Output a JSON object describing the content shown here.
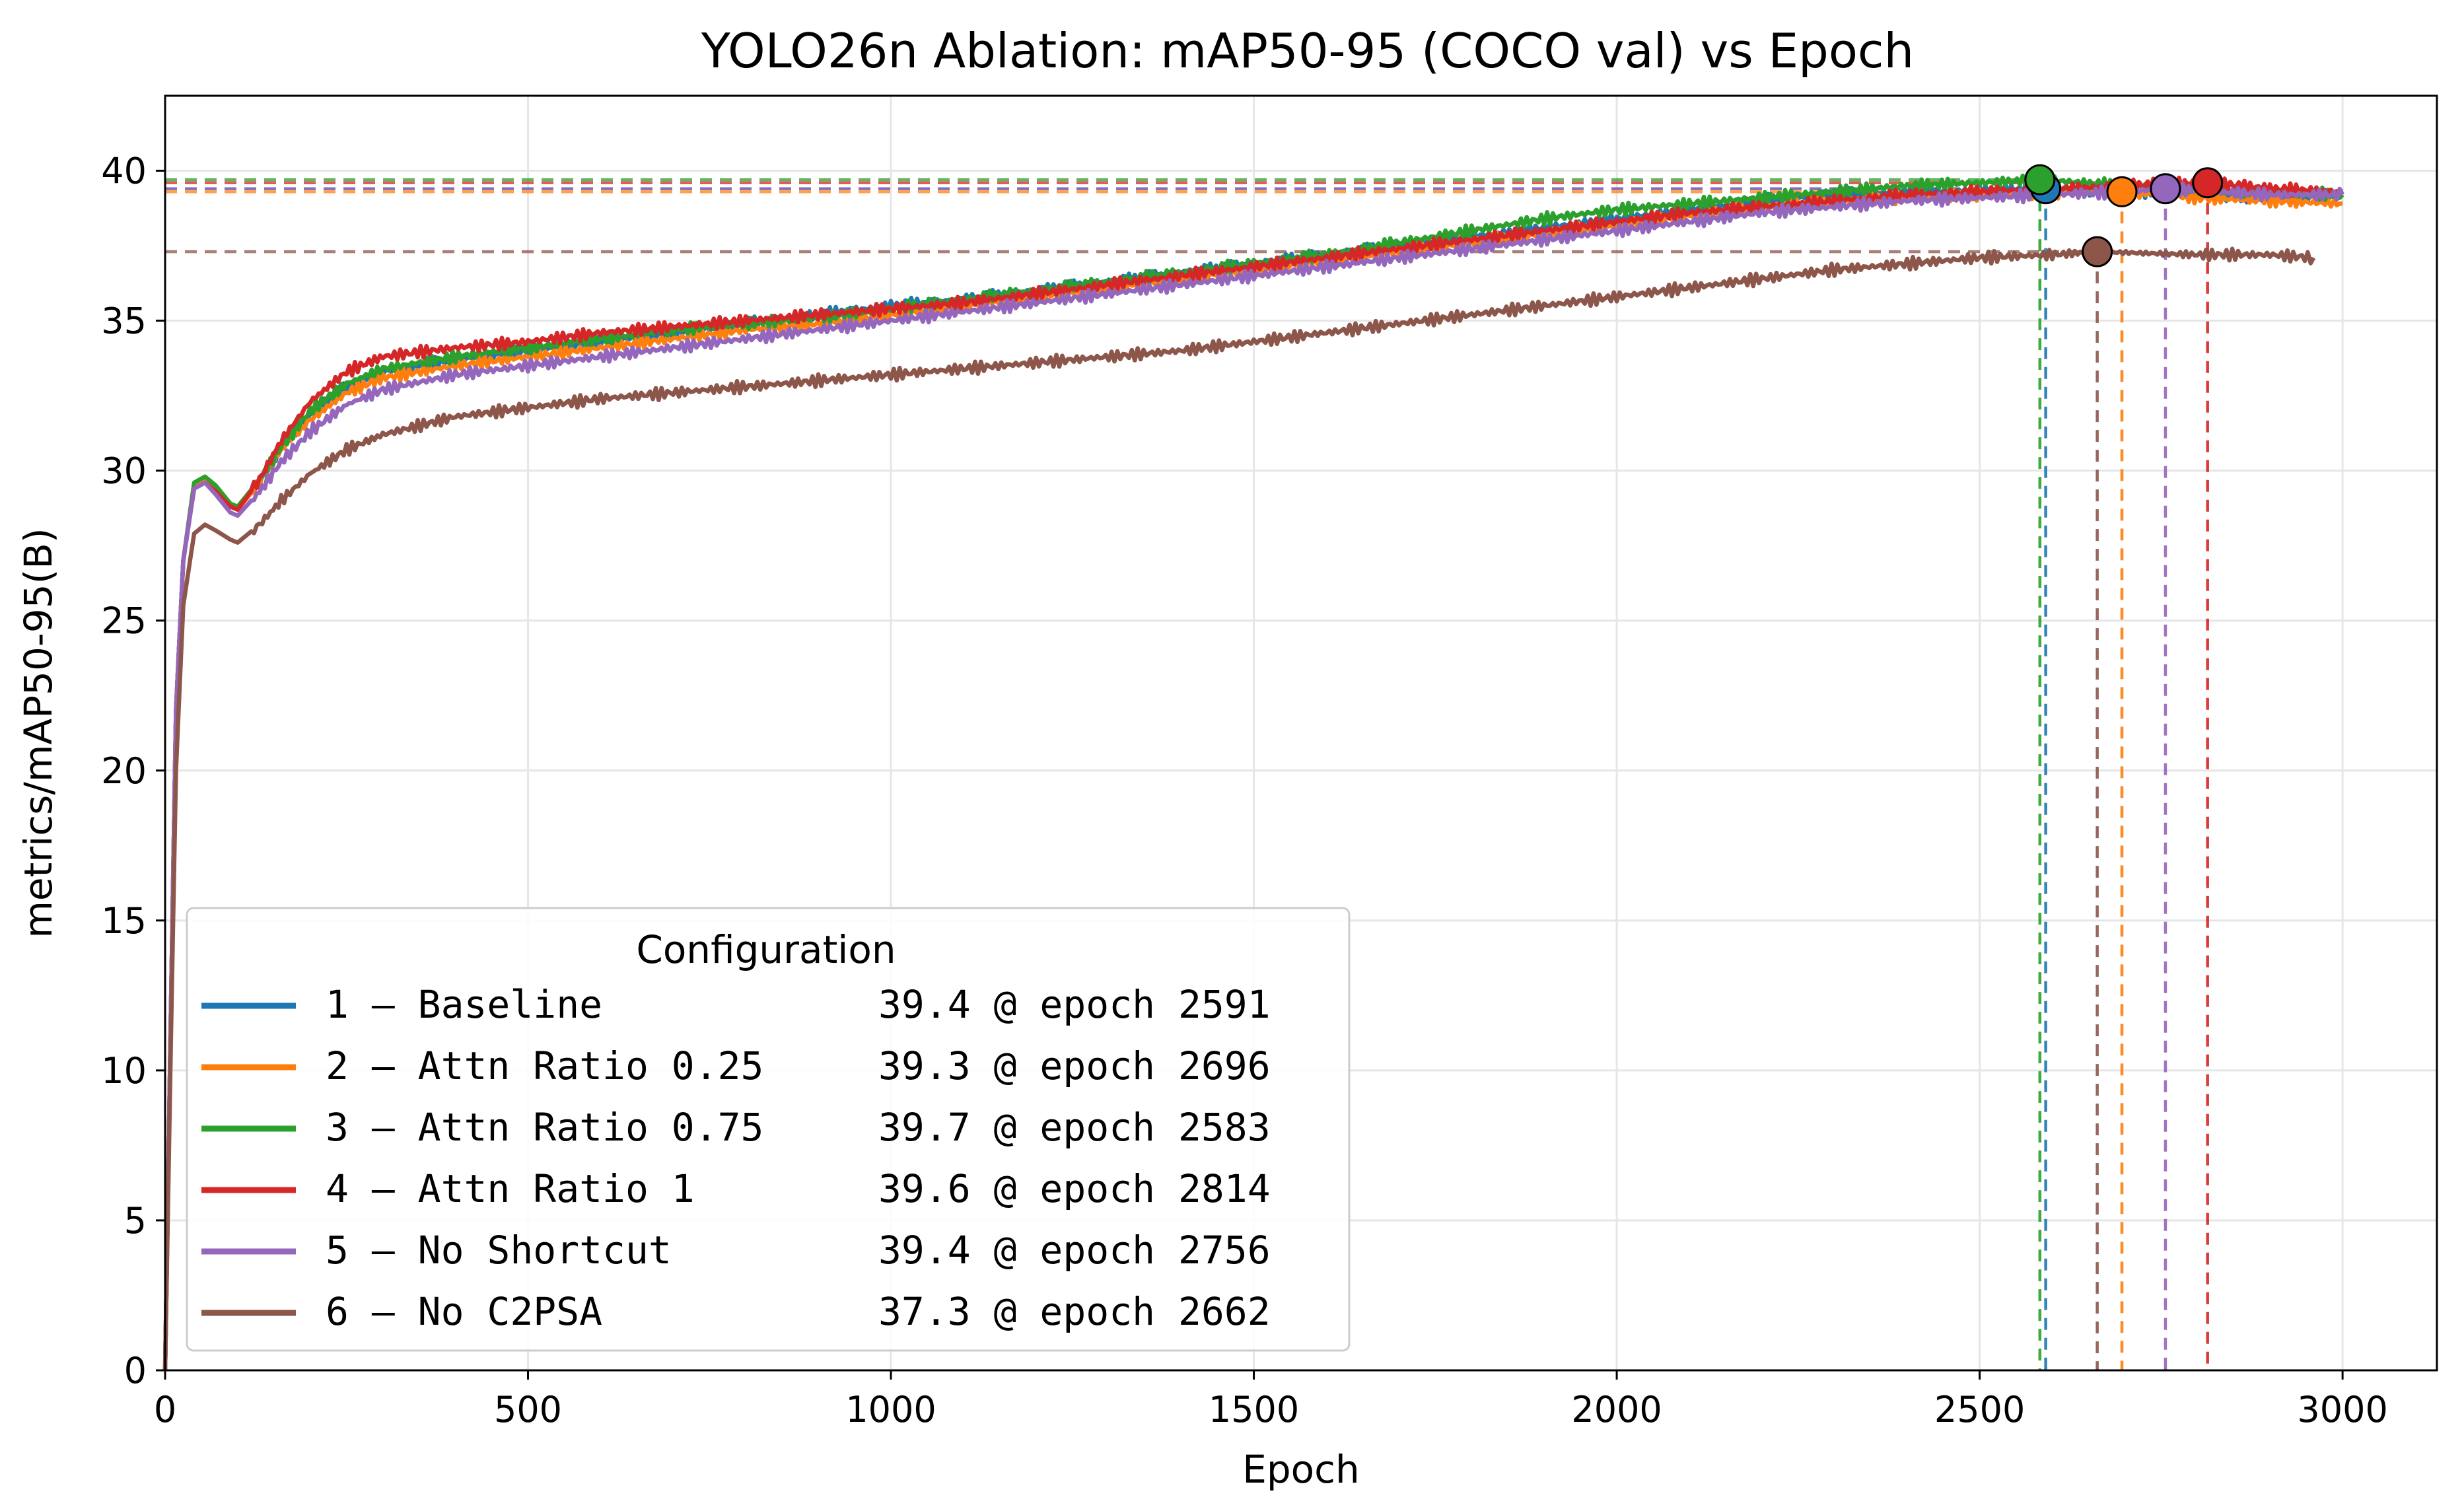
{
  "chart_data": {
    "type": "line",
    "title": "YOLO26n Ablation: mAP50-95 (COCO val) vs Epoch",
    "xlabel": "Epoch",
    "ylabel": "metrics/mAP50-95(B)",
    "xlim": [
      0,
      3130
    ],
    "ylim": [
      0,
      42.5
    ],
    "xticks": [
      0,
      500,
      1000,
      1500,
      2000,
      2500,
      3000
    ],
    "yticks": [
      0,
      5,
      10,
      15,
      20,
      25,
      30,
      35,
      40
    ],
    "grid": true,
    "legend": {
      "title": "Configuration",
      "placement": "lower-left"
    },
    "series": [
      {
        "name": "1 – Baseline",
        "color": "#1f77b4",
        "best_label": "39.4 @ epoch 2591",
        "best": {
          "x": 2591,
          "y": 39.4
        },
        "points": [
          [
            0,
            0
          ],
          [
            8,
            12
          ],
          [
            15,
            22
          ],
          [
            25,
            27
          ],
          [
            40,
            29.5
          ],
          [
            55,
            29.7
          ],
          [
            70,
            29.4
          ],
          [
            90,
            28.8
          ],
          [
            100,
            28.7
          ],
          [
            130,
            29.6
          ],
          [
            160,
            30.8
          ],
          [
            200,
            31.9
          ],
          [
            250,
            32.8
          ],
          [
            300,
            33.3
          ],
          [
            400,
            33.7
          ],
          [
            500,
            34.0
          ],
          [
            600,
            34.3
          ],
          [
            700,
            34.6
          ],
          [
            800,
            34.9
          ],
          [
            900,
            35.2
          ],
          [
            1000,
            35.5
          ],
          [
            1100,
            35.7
          ],
          [
            1200,
            36.0
          ],
          [
            1300,
            36.3
          ],
          [
            1400,
            36.6
          ],
          [
            1500,
            36.9
          ],
          [
            1600,
            37.2
          ],
          [
            1700,
            37.5
          ],
          [
            1800,
            37.8
          ],
          [
            1900,
            38.1
          ],
          [
            2000,
            38.4
          ],
          [
            2100,
            38.7
          ],
          [
            2200,
            39.0
          ],
          [
            2300,
            39.2
          ],
          [
            2400,
            39.3
          ],
          [
            2500,
            39.35
          ],
          [
            2591,
            39.4
          ],
          [
            2700,
            39.3
          ],
          [
            2800,
            39.2
          ],
          [
            2900,
            39.1
          ],
          [
            3000,
            39.2
          ]
        ]
      },
      {
        "name": "2 – Attn Ratio 0.25",
        "color": "#ff7f0e",
        "best_label": "39.3 @ epoch 2696",
        "best": {
          "x": 2696,
          "y": 39.3
        },
        "points": [
          [
            0,
            0
          ],
          [
            8,
            12
          ],
          [
            15,
            22
          ],
          [
            25,
            27
          ],
          [
            40,
            29.5
          ],
          [
            55,
            29.7
          ],
          [
            70,
            29.4
          ],
          [
            90,
            28.8
          ],
          [
            100,
            28.7
          ],
          [
            130,
            29.6
          ],
          [
            160,
            30.7
          ],
          [
            200,
            31.7
          ],
          [
            250,
            32.6
          ],
          [
            300,
            33.1
          ],
          [
            400,
            33.5
          ],
          [
            500,
            33.8
          ],
          [
            600,
            34.1
          ],
          [
            700,
            34.4
          ],
          [
            800,
            34.7
          ],
          [
            900,
            34.9
          ],
          [
            1000,
            35.2
          ],
          [
            1100,
            35.5
          ],
          [
            1200,
            35.8
          ],
          [
            1300,
            36.1
          ],
          [
            1400,
            36.4
          ],
          [
            1500,
            36.7
          ],
          [
            1600,
            37.0
          ],
          [
            1700,
            37.3
          ],
          [
            1800,
            37.6
          ],
          [
            1900,
            37.9
          ],
          [
            2000,
            38.2
          ],
          [
            2100,
            38.5
          ],
          [
            2200,
            38.8
          ],
          [
            2300,
            39.0
          ],
          [
            2400,
            39.1
          ],
          [
            2500,
            39.2
          ],
          [
            2600,
            39.25
          ],
          [
            2696,
            39.3
          ],
          [
            2800,
            39.1
          ],
          [
            2900,
            39.0
          ],
          [
            3000,
            38.9
          ]
        ]
      },
      {
        "name": "3 – Attn Ratio 0.75",
        "color": "#2ca02c",
        "best_label": "39.7 @ epoch 2583",
        "best": {
          "x": 2583,
          "y": 39.7
        },
        "points": [
          [
            0,
            0
          ],
          [
            8,
            12
          ],
          [
            15,
            22
          ],
          [
            25,
            27
          ],
          [
            40,
            29.6
          ],
          [
            55,
            29.8
          ],
          [
            70,
            29.5
          ],
          [
            90,
            28.9
          ],
          [
            100,
            28.8
          ],
          [
            130,
            29.7
          ],
          [
            160,
            30.8
          ],
          [
            200,
            32.0
          ],
          [
            250,
            32.9
          ],
          [
            300,
            33.4
          ],
          [
            400,
            33.8
          ],
          [
            500,
            34.1
          ],
          [
            600,
            34.4
          ],
          [
            700,
            34.7
          ],
          [
            800,
            34.9
          ],
          [
            900,
            35.1
          ],
          [
            1000,
            35.4
          ],
          [
            1100,
            35.7
          ],
          [
            1200,
            36.0
          ],
          [
            1300,
            36.3
          ],
          [
            1400,
            36.6
          ],
          [
            1500,
            36.9
          ],
          [
            1600,
            37.2
          ],
          [
            1700,
            37.6
          ],
          [
            1800,
            38.0
          ],
          [
            1900,
            38.4
          ],
          [
            2000,
            38.7
          ],
          [
            2100,
            38.9
          ],
          [
            2200,
            39.1
          ],
          [
            2300,
            39.3
          ],
          [
            2400,
            39.5
          ],
          [
            2500,
            39.6
          ],
          [
            2583,
            39.7
          ],
          [
            2700,
            39.5
          ],
          [
            2800,
            39.4
          ],
          [
            2900,
            39.3
          ],
          [
            3000,
            39.2
          ]
        ]
      },
      {
        "name": "4 – Attn Ratio 1",
        "color": "#d62728",
        "best_label": "39.6 @ epoch 2814",
        "best": {
          "x": 2814,
          "y": 39.6
        },
        "points": [
          [
            0,
            0
          ],
          [
            8,
            12
          ],
          [
            15,
            22
          ],
          [
            25,
            27
          ],
          [
            40,
            29.4
          ],
          [
            55,
            29.6
          ],
          [
            70,
            29.3
          ],
          [
            90,
            28.8
          ],
          [
            100,
            28.7
          ],
          [
            130,
            29.7
          ],
          [
            160,
            31.0
          ],
          [
            200,
            32.3
          ],
          [
            250,
            33.3
          ],
          [
            300,
            33.8
          ],
          [
            400,
            34.1
          ],
          [
            500,
            34.3
          ],
          [
            600,
            34.6
          ],
          [
            700,
            34.8
          ],
          [
            800,
            35.0
          ],
          [
            900,
            35.2
          ],
          [
            1000,
            35.4
          ],
          [
            1100,
            35.6
          ],
          [
            1200,
            35.9
          ],
          [
            1300,
            36.2
          ],
          [
            1400,
            36.5
          ],
          [
            1500,
            36.8
          ],
          [
            1600,
            37.1
          ],
          [
            1700,
            37.4
          ],
          [
            1800,
            37.7
          ],
          [
            1900,
            38.0
          ],
          [
            2000,
            38.3
          ],
          [
            2100,
            38.6
          ],
          [
            2200,
            38.8
          ],
          [
            2300,
            39.0
          ],
          [
            2400,
            39.2
          ],
          [
            2500,
            39.3
          ],
          [
            2600,
            39.4
          ],
          [
            2700,
            39.5
          ],
          [
            2814,
            39.6
          ],
          [
            2900,
            39.4
          ],
          [
            3000,
            39.3
          ]
        ]
      },
      {
        "name": "5 – No Shortcut",
        "color": "#9467bd",
        "best_label": "39.4 @ epoch 2756",
        "best": {
          "x": 2756,
          "y": 39.4
        },
        "points": [
          [
            0,
            0
          ],
          [
            8,
            12
          ],
          [
            15,
            22
          ],
          [
            25,
            27
          ],
          [
            40,
            29.4
          ],
          [
            55,
            29.6
          ],
          [
            70,
            29.2
          ],
          [
            90,
            28.6
          ],
          [
            100,
            28.5
          ],
          [
            130,
            29.3
          ],
          [
            160,
            30.3
          ],
          [
            200,
            31.3
          ],
          [
            250,
            32.2
          ],
          [
            300,
            32.7
          ],
          [
            400,
            33.2
          ],
          [
            500,
            33.5
          ],
          [
            600,
            33.8
          ],
          [
            700,
            34.1
          ],
          [
            800,
            34.4
          ],
          [
            900,
            34.7
          ],
          [
            1000,
            35.0
          ],
          [
            1100,
            35.3
          ],
          [
            1200,
            35.6
          ],
          [
            1300,
            35.9
          ],
          [
            1400,
            36.2
          ],
          [
            1500,
            36.5
          ],
          [
            1600,
            36.8
          ],
          [
            1700,
            37.1
          ],
          [
            1800,
            37.4
          ],
          [
            1900,
            37.7
          ],
          [
            2000,
            38.0
          ],
          [
            2100,
            38.3
          ],
          [
            2200,
            38.6
          ],
          [
            2300,
            38.8
          ],
          [
            2400,
            39.0
          ],
          [
            2500,
            39.1
          ],
          [
            2600,
            39.2
          ],
          [
            2700,
            39.3
          ],
          [
            2756,
            39.4
          ],
          [
            2900,
            39.2
          ],
          [
            3000,
            39.2
          ]
        ]
      },
      {
        "name": "6 – No C2PSA",
        "color": "#8c564b",
        "best_label": "37.3 @ epoch 2662",
        "best": {
          "x": 2662,
          "y": 37.3
        },
        "points": [
          [
            0,
            0
          ],
          [
            8,
            11
          ],
          [
            15,
            20
          ],
          [
            25,
            25.5
          ],
          [
            40,
            27.9
          ],
          [
            55,
            28.2
          ],
          [
            70,
            28.0
          ],
          [
            90,
            27.7
          ],
          [
            100,
            27.6
          ],
          [
            130,
            28.2
          ],
          [
            160,
            29.0
          ],
          [
            200,
            29.9
          ],
          [
            250,
            30.7
          ],
          [
            300,
            31.2
          ],
          [
            400,
            31.8
          ],
          [
            500,
            32.1
          ],
          [
            600,
            32.4
          ],
          [
            700,
            32.6
          ],
          [
            800,
            32.8
          ],
          [
            900,
            33.0
          ],
          [
            1000,
            33.2
          ],
          [
            1100,
            33.4
          ],
          [
            1200,
            33.6
          ],
          [
            1300,
            33.8
          ],
          [
            1400,
            34.0
          ],
          [
            1500,
            34.3
          ],
          [
            1600,
            34.6
          ],
          [
            1700,
            34.9
          ],
          [
            1800,
            35.2
          ],
          [
            1900,
            35.5
          ],
          [
            2000,
            35.8
          ],
          [
            2100,
            36.1
          ],
          [
            2200,
            36.4
          ],
          [
            2300,
            36.7
          ],
          [
            2400,
            36.9
          ],
          [
            2500,
            37.1
          ],
          [
            2600,
            37.2
          ],
          [
            2662,
            37.3
          ],
          [
            2800,
            37.2
          ],
          [
            2900,
            37.2
          ],
          [
            2960,
            37.1
          ]
        ]
      }
    ]
  }
}
